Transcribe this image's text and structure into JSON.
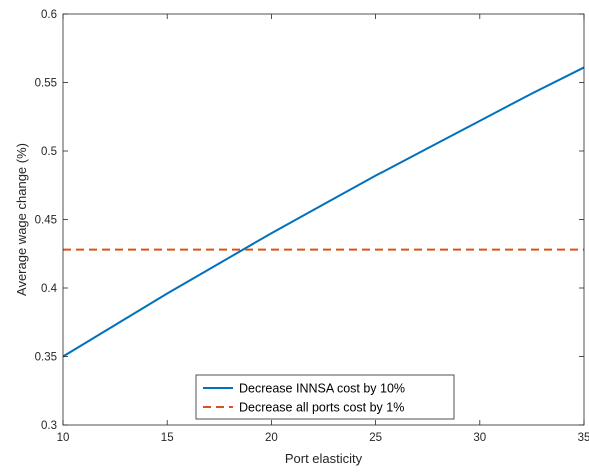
{
  "chart_data": {
    "type": "line",
    "title": "",
    "xlabel": "Port elasticity",
    "ylabel": "Average wage change (%)",
    "xlim": [
      10,
      35
    ],
    "ylim": [
      0.3,
      0.6
    ],
    "xticks": [
      10,
      15,
      20,
      25,
      30,
      35
    ],
    "yticks": [
      0.3,
      0.35,
      0.4,
      0.45,
      0.5,
      0.55,
      0.6
    ],
    "xtick_labels": [
      "10",
      "15",
      "20",
      "25",
      "30",
      "35"
    ],
    "ytick_labels": [
      "0.3",
      "0.35",
      "0.4",
      "0.45",
      "0.5",
      "0.55",
      "0.6"
    ],
    "grid": false,
    "legend_position": "bottom-center",
    "series": [
      {
        "name": "Decrease INNSA cost by 10%",
        "color": "#0072BD",
        "style": "solid",
        "x": [
          10,
          12.5,
          15,
          17.5,
          20,
          22.5,
          25,
          27.5,
          30,
          32.5,
          35
        ],
        "y": [
          0.35,
          0.373,
          0.396,
          0.418,
          0.44,
          0.461,
          0.482,
          0.502,
          0.522,
          0.542,
          0.561
        ]
      },
      {
        "name": "Decrease all ports cost by 1%",
        "color": "#D95319",
        "style": "dashed",
        "x": [
          10,
          35
        ],
        "y": [
          0.428,
          0.428
        ]
      }
    ]
  }
}
